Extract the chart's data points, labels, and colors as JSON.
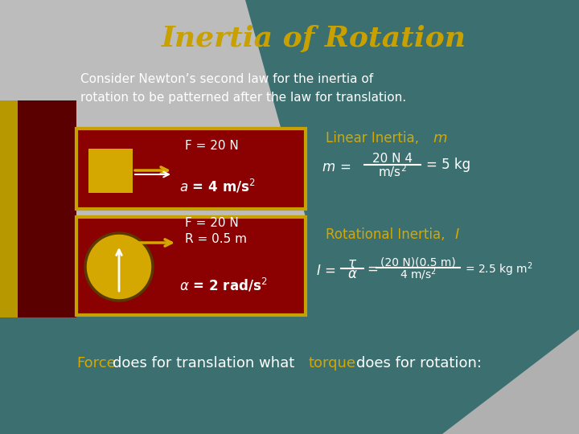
{
  "title": "Inertia of Rotation",
  "title_color": "#C8A000",
  "bg_teal": "#3A7070",
  "bg_gray": "#A0A0A0",
  "bg_gray_light": "#C0C0C0",
  "bg_olive": "#8B7B00",
  "bg_dark_red": "#7A0000",
  "bg_red_border": "#C8A000",
  "white": "#FFFFFF",
  "gold": "#D4A800",
  "subtitle": "Consider Newton’s second law for the inertia of\nrotation to be patterned after the law for translation.",
  "footer_white": " does for translation what ",
  "footer_white2": " does for rotation:",
  "force_word": "Force",
  "torque_word": "torque"
}
